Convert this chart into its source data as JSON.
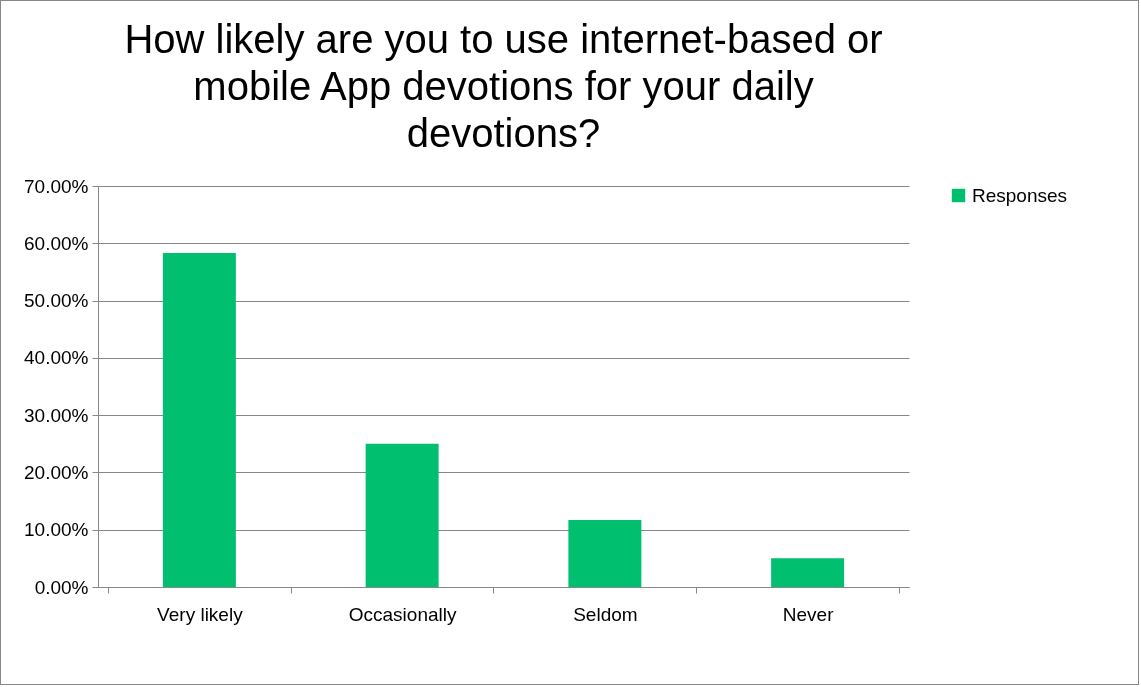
{
  "chart_data": {
    "type": "bar",
    "title": "How likely are you to use internet-based or mobile App devotions for your daily devotions?",
    "categories": [
      "Very likely",
      "Occasionally",
      "Seldom",
      "Never"
    ],
    "series": [
      {
        "name": "Responses",
        "color": "#00c070",
        "values": [
          58.3,
          25,
          11.7,
          5
        ]
      }
    ],
    "ylim": [
      0,
      70
    ],
    "yticks": [
      {
        "value": 0,
        "label": "0.00%"
      },
      {
        "value": 10,
        "label": "10.00%"
      },
      {
        "value": 20,
        "label": "20.00%"
      },
      {
        "value": 30,
        "label": "30.00%"
      },
      {
        "value": 40,
        "label": "40.00%"
      },
      {
        "value": 50,
        "label": "50.00%"
      },
      {
        "value": 60,
        "label": "60.00%"
      },
      {
        "value": 70,
        "label": "70.00%"
      }
    ],
    "grid": "y",
    "legend": "right"
  }
}
